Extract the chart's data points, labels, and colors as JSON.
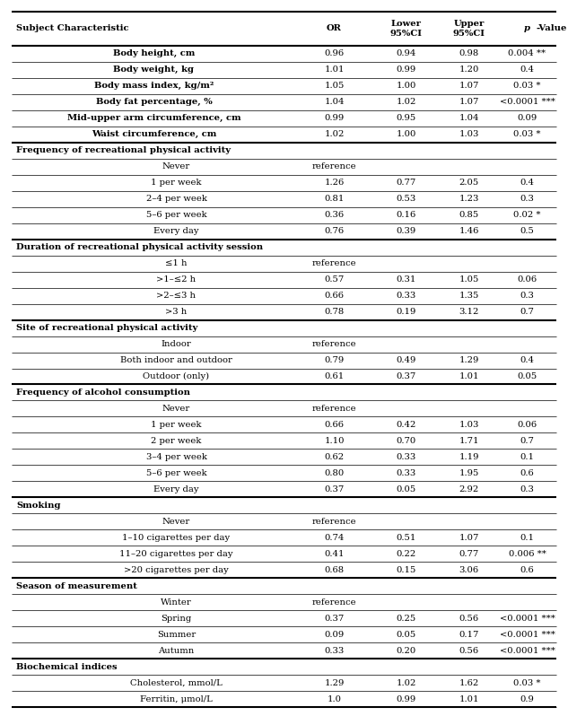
{
  "col_headers": [
    "Subject Characteristic",
    "OR",
    "Lower\n95%CI",
    "Upper\n95%CI",
    "p-Value"
  ],
  "rows": [
    {
      "label": "Body height, cm",
      "or": "0.96",
      "lower": "0.94",
      "upper": "0.98",
      "pval": "0.004 **",
      "bold": true,
      "indent": 0,
      "center_label": true,
      "is_header": false,
      "reference": false,
      "sep_above": false,
      "sep_below_thick": false
    },
    {
      "label": "Body weight, kg",
      "or": "1.01",
      "lower": "0.99",
      "upper": "1.20",
      "pval": "0.4",
      "bold": true,
      "indent": 0,
      "center_label": true,
      "is_header": false,
      "reference": false,
      "sep_above": false,
      "sep_below_thick": false
    },
    {
      "label": "Body mass index, kg/m²",
      "or": "1.05",
      "lower": "1.00",
      "upper": "1.07",
      "pval": "0.03 *",
      "bold": true,
      "indent": 0,
      "center_label": true,
      "is_header": false,
      "reference": false,
      "sep_above": false,
      "sep_below_thick": false
    },
    {
      "label": "Body fat percentage, %",
      "or": "1.04",
      "lower": "1.02",
      "upper": "1.07",
      "pval": "<0.0001 ***",
      "bold": true,
      "indent": 0,
      "center_label": true,
      "is_header": false,
      "reference": false,
      "sep_above": false,
      "sep_below_thick": false
    },
    {
      "label": "Mid-upper arm circumference, cm",
      "or": "0.99",
      "lower": "0.95",
      "upper": "1.04",
      "pval": "0.09",
      "bold": true,
      "indent": 0,
      "center_label": true,
      "is_header": false,
      "reference": false,
      "sep_above": false,
      "sep_below_thick": false
    },
    {
      "label": "Waist circumference, cm",
      "or": "1.02",
      "lower": "1.00",
      "upper": "1.03",
      "pval": "0.03 *",
      "bold": true,
      "indent": 0,
      "center_label": true,
      "is_header": false,
      "reference": false,
      "sep_above": false,
      "sep_below_thick": true
    },
    {
      "label": "Frequency of recreational physical activity",
      "or": "",
      "lower": "",
      "upper": "",
      "pval": "",
      "bold": true,
      "indent": 0,
      "center_label": false,
      "is_header": true,
      "reference": false,
      "sep_above": false,
      "sep_below_thick": false
    },
    {
      "label": "Never",
      "or": "",
      "lower": "",
      "upper": "",
      "pval": "",
      "bold": false,
      "indent": 1,
      "center_label": true,
      "is_header": false,
      "reference": true,
      "sep_above": false,
      "sep_below_thick": false
    },
    {
      "label": "1 per week",
      "or": "1.26",
      "lower": "0.77",
      "upper": "2.05",
      "pval": "0.4",
      "bold": false,
      "indent": 1,
      "center_label": true,
      "is_header": false,
      "reference": false,
      "sep_above": false,
      "sep_below_thick": false
    },
    {
      "label": "2–4 per week",
      "or": "0.81",
      "lower": "0.53",
      "upper": "1.23",
      "pval": "0.3",
      "bold": false,
      "indent": 1,
      "center_label": true,
      "is_header": false,
      "reference": false,
      "sep_above": false,
      "sep_below_thick": false
    },
    {
      "label": "5–6 per week",
      "or": "0.36",
      "lower": "0.16",
      "upper": "0.85",
      "pval": "0.02 *",
      "bold": false,
      "indent": 1,
      "center_label": true,
      "is_header": false,
      "reference": false,
      "sep_above": false,
      "sep_below_thick": false
    },
    {
      "label": "Every day",
      "or": "0.76",
      "lower": "0.39",
      "upper": "1.46",
      "pval": "0.5",
      "bold": false,
      "indent": 1,
      "center_label": true,
      "is_header": false,
      "reference": false,
      "sep_above": false,
      "sep_below_thick": true
    },
    {
      "label": "Duration of recreational physical activity session",
      "or": "",
      "lower": "",
      "upper": "",
      "pval": "",
      "bold": true,
      "indent": 0,
      "center_label": false,
      "is_header": true,
      "reference": false,
      "sep_above": false,
      "sep_below_thick": false
    },
    {
      "label": "≤1 h",
      "or": "",
      "lower": "",
      "upper": "",
      "pval": "",
      "bold": false,
      "indent": 1,
      "center_label": true,
      "is_header": false,
      "reference": true,
      "sep_above": false,
      "sep_below_thick": false
    },
    {
      "label": ">1–≤2 h",
      "or": "0.57",
      "lower": "0.31",
      "upper": "1.05",
      "pval": "0.06",
      "bold": false,
      "indent": 1,
      "center_label": true,
      "is_header": false,
      "reference": false,
      "sep_above": false,
      "sep_below_thick": false
    },
    {
      "label": ">2–≤3 h",
      "or": "0.66",
      "lower": "0.33",
      "upper": "1.35",
      "pval": "0.3",
      "bold": false,
      "indent": 1,
      "center_label": true,
      "is_header": false,
      "reference": false,
      "sep_above": false,
      "sep_below_thick": false
    },
    {
      "label": ">3 h",
      "or": "0.78",
      "lower": "0.19",
      "upper": "3.12",
      "pval": "0.7",
      "bold": false,
      "indent": 1,
      "center_label": true,
      "is_header": false,
      "reference": false,
      "sep_above": false,
      "sep_below_thick": true
    },
    {
      "label": "Site of recreational physical activity",
      "or": "",
      "lower": "",
      "upper": "",
      "pval": "",
      "bold": true,
      "indent": 0,
      "center_label": false,
      "is_header": true,
      "reference": false,
      "sep_above": false,
      "sep_below_thick": false
    },
    {
      "label": "Indoor",
      "or": "",
      "lower": "",
      "upper": "",
      "pval": "",
      "bold": false,
      "indent": 1,
      "center_label": true,
      "is_header": false,
      "reference": true,
      "sep_above": false,
      "sep_below_thick": false
    },
    {
      "label": "Both indoor and outdoor",
      "or": "0.79",
      "lower": "0.49",
      "upper": "1.29",
      "pval": "0.4",
      "bold": false,
      "indent": 1,
      "center_label": true,
      "is_header": false,
      "reference": false,
      "sep_above": false,
      "sep_below_thick": false
    },
    {
      "label": "Outdoor (only)",
      "or": "0.61",
      "lower": "0.37",
      "upper": "1.01",
      "pval": "0.05",
      "bold": false,
      "indent": 1,
      "center_label": true,
      "is_header": false,
      "reference": false,
      "sep_above": false,
      "sep_below_thick": true
    },
    {
      "label": "Frequency of alcohol consumption",
      "or": "",
      "lower": "",
      "upper": "",
      "pval": "",
      "bold": true,
      "indent": 0,
      "center_label": false,
      "is_header": true,
      "reference": false,
      "sep_above": false,
      "sep_below_thick": false
    },
    {
      "label": "Never",
      "or": "",
      "lower": "",
      "upper": "",
      "pval": "",
      "bold": false,
      "indent": 1,
      "center_label": true,
      "is_header": false,
      "reference": true,
      "sep_above": false,
      "sep_below_thick": false
    },
    {
      "label": "1 per week",
      "or": "0.66",
      "lower": "0.42",
      "upper": "1.03",
      "pval": "0.06",
      "bold": false,
      "indent": 1,
      "center_label": true,
      "is_header": false,
      "reference": false,
      "sep_above": false,
      "sep_below_thick": false
    },
    {
      "label": "2 per week",
      "or": "1.10",
      "lower": "0.70",
      "upper": "1.71",
      "pval": "0.7",
      "bold": false,
      "indent": 1,
      "center_label": true,
      "is_header": false,
      "reference": false,
      "sep_above": false,
      "sep_below_thick": false
    },
    {
      "label": "3–4 per week",
      "or": "0.62",
      "lower": "0.33",
      "upper": "1.19",
      "pval": "0.1",
      "bold": false,
      "indent": 1,
      "center_label": true,
      "is_header": false,
      "reference": false,
      "sep_above": false,
      "sep_below_thick": false
    },
    {
      "label": "5–6 per week",
      "or": "0.80",
      "lower": "0.33",
      "upper": "1.95",
      "pval": "0.6",
      "bold": false,
      "indent": 1,
      "center_label": true,
      "is_header": false,
      "reference": false,
      "sep_above": false,
      "sep_below_thick": false
    },
    {
      "label": "Every day",
      "or": "0.37",
      "lower": "0.05",
      "upper": "2.92",
      "pval": "0.3",
      "bold": false,
      "indent": 1,
      "center_label": true,
      "is_header": false,
      "reference": false,
      "sep_above": false,
      "sep_below_thick": true
    },
    {
      "label": "Smoking",
      "or": "",
      "lower": "",
      "upper": "",
      "pval": "",
      "bold": true,
      "indent": 0,
      "center_label": true,
      "is_header": true,
      "reference": false,
      "sep_above": false,
      "sep_below_thick": false
    },
    {
      "label": "Never",
      "or": "",
      "lower": "",
      "upper": "",
      "pval": "",
      "bold": false,
      "indent": 1,
      "center_label": true,
      "is_header": false,
      "reference": true,
      "sep_above": false,
      "sep_below_thick": false
    },
    {
      "label": "1–10 cigarettes per day",
      "or": "0.74",
      "lower": "0.51",
      "upper": "1.07",
      "pval": "0.1",
      "bold": false,
      "indent": 1,
      "center_label": true,
      "is_header": false,
      "reference": false,
      "sep_above": false,
      "sep_below_thick": false
    },
    {
      "label": "11–20 cigarettes per day",
      "or": "0.41",
      "lower": "0.22",
      "upper": "0.77",
      "pval": "0.006 **",
      "bold": false,
      "indent": 1,
      "center_label": true,
      "is_header": false,
      "reference": false,
      "sep_above": false,
      "sep_below_thick": false
    },
    {
      "label": ">20 cigarettes per day",
      "or": "0.68",
      "lower": "0.15",
      "upper": "3.06",
      "pval": "0.6",
      "bold": false,
      "indent": 1,
      "center_label": true,
      "is_header": false,
      "reference": false,
      "sep_above": false,
      "sep_below_thick": true
    },
    {
      "label": "Season of measurement",
      "or": "",
      "lower": "",
      "upper": "",
      "pval": "",
      "bold": true,
      "indent": 0,
      "center_label": false,
      "is_header": true,
      "reference": false,
      "sep_above": false,
      "sep_below_thick": false
    },
    {
      "label": "Winter",
      "or": "",
      "lower": "",
      "upper": "",
      "pval": "",
      "bold": false,
      "indent": 1,
      "center_label": true,
      "is_header": false,
      "reference": true,
      "sep_above": false,
      "sep_below_thick": false
    },
    {
      "label": "Spring",
      "or": "0.37",
      "lower": "0.25",
      "upper": "0.56",
      "pval": "<0.0001 ***",
      "bold": false,
      "indent": 1,
      "center_label": true,
      "is_header": false,
      "reference": false,
      "sep_above": false,
      "sep_below_thick": false
    },
    {
      "label": "Summer",
      "or": "0.09",
      "lower": "0.05",
      "upper": "0.17",
      "pval": "<0.0001 ***",
      "bold": false,
      "indent": 1,
      "center_label": true,
      "is_header": false,
      "reference": false,
      "sep_above": false,
      "sep_below_thick": false
    },
    {
      "label": "Autumn",
      "or": "0.33",
      "lower": "0.20",
      "upper": "0.56",
      "pval": "<0.0001 ***",
      "bold": false,
      "indent": 1,
      "center_label": true,
      "is_header": false,
      "reference": false,
      "sep_above": false,
      "sep_below_thick": true
    },
    {
      "label": "Biochemical indices",
      "or": "",
      "lower": "",
      "upper": "",
      "pval": "",
      "bold": true,
      "indent": 0,
      "center_label": true,
      "is_header": true,
      "reference": false,
      "sep_above": false,
      "sep_below_thick": false
    },
    {
      "label": "Cholesterol, mmol/L",
      "or": "1.29",
      "lower": "1.02",
      "upper": "1.62",
      "pval": "0.03 *",
      "bold": false,
      "indent": 1,
      "center_label": true,
      "is_header": false,
      "reference": false,
      "sep_above": false,
      "sep_below_thick": false
    },
    {
      "label": "Ferritin, μmol/L",
      "or": "1.0",
      "lower": "0.99",
      "upper": "1.01",
      "pval": "0.9",
      "bold": false,
      "indent": 1,
      "center_label": true,
      "is_header": false,
      "reference": false,
      "sep_above": false,
      "sep_below_thick": false
    }
  ],
  "font_size": 7.2,
  "bg_color": "#ffffff"
}
